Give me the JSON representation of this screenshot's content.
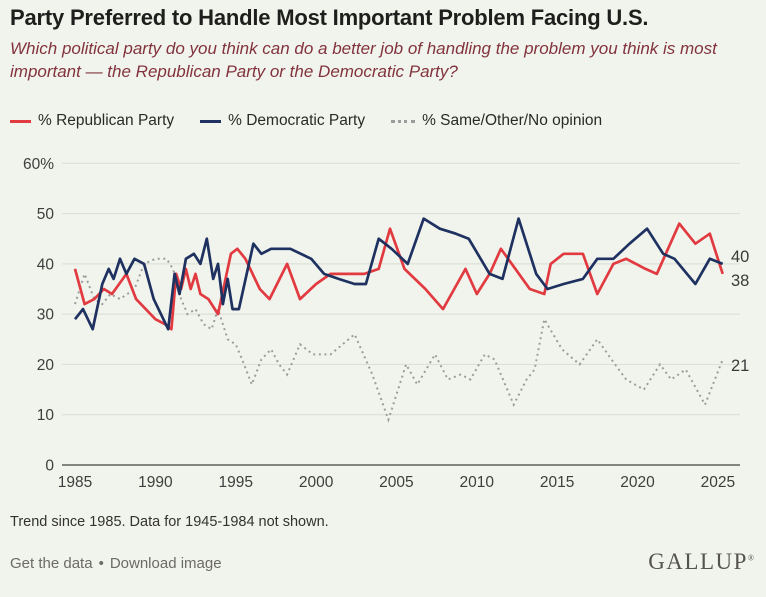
{
  "header": {
    "title": "Party Preferred to Handle Most Important Problem Facing U.S.",
    "subtitle": "Which political party do you think can do a better job of handling the problem you think is most important — the Republican Party or the Democratic Party?"
  },
  "legend": [
    {
      "label": "% Republican Party",
      "color": "#e13b41",
      "style": "solid"
    },
    {
      "label": "% Democratic Party",
      "color": "#1e3160",
      "style": "solid"
    },
    {
      "label": "% Same/Other/No opinion",
      "color": "#9c9c9c",
      "style": "dotted"
    }
  ],
  "chart_data": {
    "type": "line",
    "title": "Party Preferred to Handle Most Important Problem Facing U.S.",
    "xlabel": "",
    "ylabel": "",
    "x_ticks": [
      1985,
      1990,
      1995,
      2000,
      2005,
      2010,
      2015,
      2020,
      2025
    ],
    "y_ticks": [
      {
        "value": 60,
        "label": "60%"
      },
      {
        "value": 50,
        "label": "50"
      },
      {
        "value": 40,
        "label": "40"
      },
      {
        "value": 30,
        "label": "30"
      },
      {
        "value": 20,
        "label": "20"
      },
      {
        "value": 10,
        "label": "10"
      },
      {
        "value": 0,
        "label": "0"
      }
    ],
    "ylim": [
      0,
      60
    ],
    "xlim": [
      1985,
      2025.5
    ],
    "grid": true,
    "legend_position": "top",
    "series": [
      {
        "name": "% Republican Party",
        "color": "#e13b41",
        "dash": "solid",
        "end_label": "38",
        "points": [
          [
            1985,
            39
          ],
          [
            1985.6,
            32
          ],
          [
            1986.2,
            33
          ],
          [
            1986.8,
            35
          ],
          [
            1987.3,
            34
          ],
          [
            1988.2,
            38
          ],
          [
            1988.8,
            33
          ],
          [
            1989.4,
            31
          ],
          [
            1990,
            29
          ],
          [
            1990.6,
            28
          ],
          [
            1991,
            27
          ],
          [
            1991.3,
            38
          ],
          [
            1991.6,
            35
          ],
          [
            1991.9,
            39
          ],
          [
            1992.2,
            35
          ],
          [
            1992.5,
            38
          ],
          [
            1992.8,
            34
          ],
          [
            1993.3,
            33
          ],
          [
            1993.9,
            30
          ],
          [
            1994.7,
            42
          ],
          [
            1995.1,
            43
          ],
          [
            1995.6,
            41
          ],
          [
            1996.5,
            35
          ],
          [
            1997.1,
            33
          ],
          [
            1998.2,
            40
          ],
          [
            1999,
            33
          ],
          [
            2000,
            36
          ],
          [
            2000.9,
            38
          ],
          [
            2002,
            38
          ],
          [
            2003,
            38
          ],
          [
            2003.9,
            39
          ],
          [
            2004.6,
            47
          ],
          [
            2005.5,
            39
          ],
          [
            2006.8,
            35
          ],
          [
            2007.9,
            31
          ],
          [
            2009.3,
            39
          ],
          [
            2010,
            34
          ],
          [
            2010.8,
            38
          ],
          [
            2011.5,
            43
          ],
          [
            2012.4,
            39
          ],
          [
            2013.3,
            35
          ],
          [
            2014.2,
            34
          ],
          [
            2014.6,
            40
          ],
          [
            2015.4,
            42
          ],
          [
            2016.6,
            42
          ],
          [
            2017.5,
            34
          ],
          [
            2018.5,
            40
          ],
          [
            2019.3,
            41
          ],
          [
            2020.5,
            39
          ],
          [
            2021.2,
            38
          ],
          [
            2022.6,
            48
          ],
          [
            2023.6,
            44
          ],
          [
            2024.5,
            46
          ],
          [
            2025.3,
            38
          ]
        ]
      },
      {
        "name": "% Democratic Party",
        "color": "#1e3160",
        "dash": "solid",
        "end_label": "40",
        "points": [
          [
            1985,
            29
          ],
          [
            1985.5,
            31
          ],
          [
            1986.1,
            27
          ],
          [
            1986.7,
            36
          ],
          [
            1987.1,
            39
          ],
          [
            1987.4,
            37
          ],
          [
            1987.8,
            41
          ],
          [
            1988.2,
            38
          ],
          [
            1988.7,
            41
          ],
          [
            1989.3,
            40
          ],
          [
            1989.9,
            33
          ],
          [
            1990.8,
            27
          ],
          [
            1991.2,
            38
          ],
          [
            1991.5,
            34
          ],
          [
            1991.9,
            41
          ],
          [
            1992.4,
            42
          ],
          [
            1992.8,
            40
          ],
          [
            1993.2,
            45
          ],
          [
            1993.6,
            37
          ],
          [
            1993.9,
            40
          ],
          [
            1994.2,
            32
          ],
          [
            1994.5,
            37
          ],
          [
            1994.8,
            31
          ],
          [
            1995.2,
            31
          ],
          [
            1996.1,
            44
          ],
          [
            1996.6,
            42
          ],
          [
            1997.2,
            43
          ],
          [
            1998.4,
            43
          ],
          [
            1999.7,
            41
          ],
          [
            2000.5,
            38
          ],
          [
            2001.4,
            37
          ],
          [
            2002.4,
            36
          ],
          [
            2003.1,
            36
          ],
          [
            2003.9,
            45
          ],
          [
            2004.7,
            43
          ],
          [
            2005.7,
            40
          ],
          [
            2006.7,
            49
          ],
          [
            2007.7,
            47
          ],
          [
            2008.7,
            46
          ],
          [
            2009.5,
            45
          ],
          [
            2010.8,
            38
          ],
          [
            2011.6,
            37
          ],
          [
            2012.6,
            49
          ],
          [
            2013.7,
            38
          ],
          [
            2014.4,
            35
          ],
          [
            2015.4,
            36
          ],
          [
            2016.6,
            37
          ],
          [
            2017.5,
            41
          ],
          [
            2018.5,
            41
          ],
          [
            2019.5,
            44
          ],
          [
            2020.6,
            47
          ],
          [
            2021.6,
            42
          ],
          [
            2022.3,
            41
          ],
          [
            2023.6,
            36
          ],
          [
            2024.5,
            41
          ],
          [
            2025.3,
            40
          ]
        ]
      },
      {
        "name": "% Same/Other/No opinion",
        "color": "#9c9c9c",
        "dash": "dotted",
        "end_label": "21",
        "points": [
          [
            1985,
            32
          ],
          [
            1985.6,
            38
          ],
          [
            1986.2,
            33
          ],
          [
            1986.7,
            32
          ],
          [
            1987.2,
            34
          ],
          [
            1987.8,
            33
          ],
          [
            1988.7,
            35
          ],
          [
            1989.3,
            40
          ],
          [
            1990,
            41
          ],
          [
            1990.7,
            41
          ],
          [
            1991.1,
            39
          ],
          [
            1991.6,
            33
          ],
          [
            1992,
            30
          ],
          [
            1992.5,
            31
          ],
          [
            1993,
            28
          ],
          [
            1993.5,
            27
          ],
          [
            1993.9,
            31
          ],
          [
            1994.5,
            25
          ],
          [
            1995,
            24
          ],
          [
            1995.4,
            21
          ],
          [
            1996,
            16
          ],
          [
            1996.6,
            21
          ],
          [
            1997.2,
            23
          ],
          [
            1997.7,
            20
          ],
          [
            1998.2,
            18
          ],
          [
            1999,
            24
          ],
          [
            1999.8,
            22
          ],
          [
            2000.9,
            22
          ],
          [
            2002.4,
            26
          ],
          [
            2003.5,
            18
          ],
          [
            2004.5,
            9
          ],
          [
            2005.6,
            20
          ],
          [
            2006.3,
            16
          ],
          [
            2007.4,
            22
          ],
          [
            2008.2,
            17
          ],
          [
            2009,
            18
          ],
          [
            2009.6,
            17
          ],
          [
            2010.5,
            22
          ],
          [
            2011.1,
            21
          ],
          [
            2012.3,
            12
          ],
          [
            2013.1,
            17
          ],
          [
            2013.6,
            19
          ],
          [
            2014.2,
            29
          ],
          [
            2015.3,
            23
          ],
          [
            2016.4,
            20
          ],
          [
            2017.5,
            25
          ],
          [
            2018.6,
            20
          ],
          [
            2019.3,
            17
          ],
          [
            2020.4,
            15
          ],
          [
            2021.4,
            20
          ],
          [
            2022.1,
            17
          ],
          [
            2023,
            19
          ],
          [
            2024.2,
            12
          ],
          [
            2025.3,
            21
          ]
        ]
      }
    ]
  },
  "footnote": "Trend since 1985. Data for 1945-1984 not shown.",
  "footer": {
    "links": [
      "Get the data",
      "Download image"
    ],
    "separator": "•",
    "logo": "GALLUP",
    "logo_mark": "®"
  },
  "colors": {
    "background": "#f1f4ec",
    "republican": "#e13b41",
    "democratic": "#1e3160",
    "other": "#9c9c9c",
    "subtitle": "#82333e",
    "gridline": "#d8ddd3",
    "axis": "#404040"
  }
}
